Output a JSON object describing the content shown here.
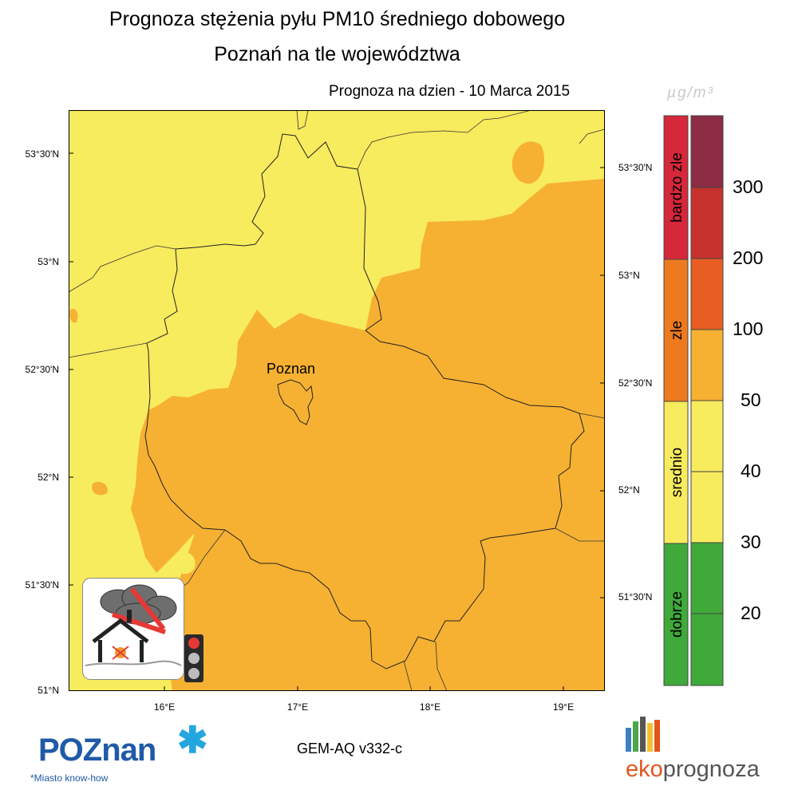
{
  "title": {
    "line1": "Prognoza stężenia pyłu PM10 średniego dobowego",
    "line2": "Poznań na tle województwa"
  },
  "forecast_date": "Prognoza na dzien -  10 Marca 2015",
  "map": {
    "city_label": "Poznan",
    "lat_labels_left": [
      "53°30'N",
      "53°N",
      "52°30'N",
      "52°N",
      "51°30'N",
      "51°N"
    ],
    "lat_labels_right": [
      "53°30'N",
      "53°N",
      "52°30'N",
      "52°N",
      "51°30'N"
    ],
    "lon_labels": [
      "16°E",
      "17°E",
      "18°E",
      "19°E"
    ],
    "colors": {
      "low": "#f7eb5e",
      "elevated": "#f6b132",
      "border": "#222222"
    }
  },
  "legend": {
    "unit": "µg/m³",
    "categories": [
      {
        "label": "bardzo zle",
        "color": "#d6283a"
      },
      {
        "label": "zle",
        "color": "#ee7a20"
      },
      {
        "label": "srednio",
        "color": "#f7eb5e"
      },
      {
        "label": "dobrze",
        "color": "#3fa93a"
      }
    ],
    "bands": [
      {
        "color": "#8c2d45"
      },
      {
        "color": "#c7322f"
      },
      {
        "color": "#e85d22"
      },
      {
        "color": "#f6b132"
      },
      {
        "color": "#f7eb5e"
      },
      {
        "color": "#f7eb5e"
      },
      {
        "color": "#3fa93a"
      },
      {
        "color": "#3fa93a"
      }
    ],
    "thresholds": [
      "300",
      "200",
      "100",
      "50",
      "40",
      "30",
      "20"
    ]
  },
  "model": "GEM-AQ v332-c",
  "logos": {
    "poznan": "POZnan",
    "poznan_slogan": "*Miasto know-how",
    "ekoprognoza_part1": "eko",
    "ekoprognoza_part2": "prognoza"
  },
  "icons": [
    "no-burning-pictogram",
    "traffic-light-icon",
    "poznan-star-icon",
    "ekoprognoza-bars-icon"
  ]
}
